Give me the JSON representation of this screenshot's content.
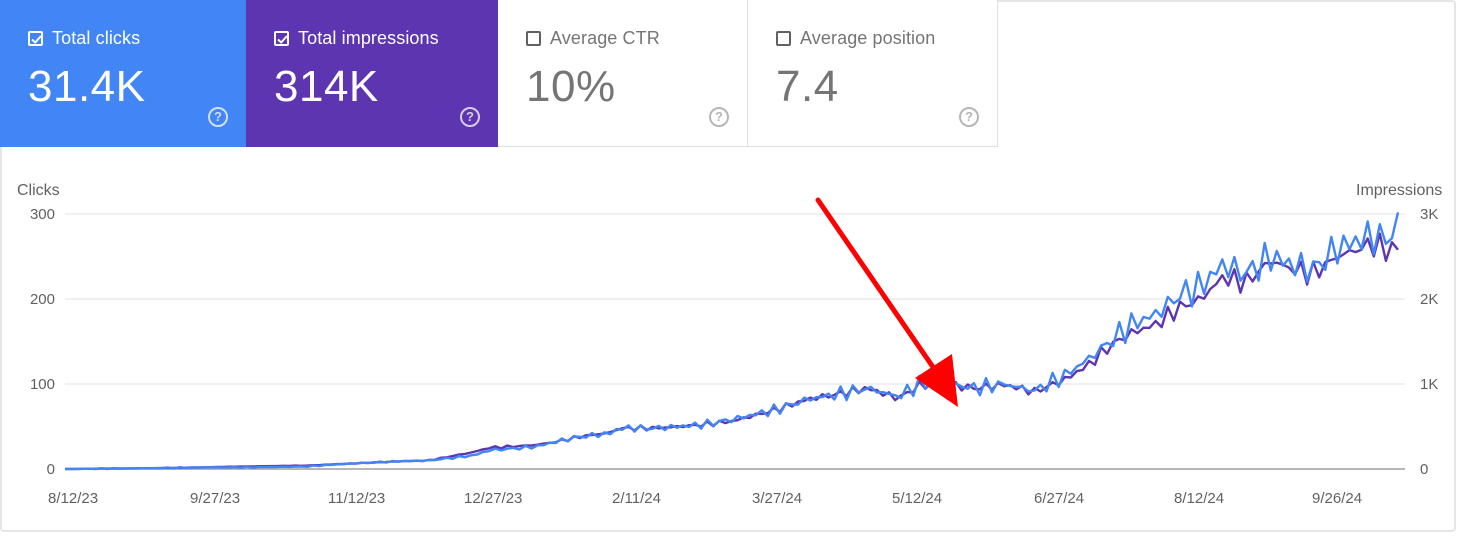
{
  "metric_cards": [
    {
      "key": "clicks",
      "label": "Total clicks",
      "value": "31.4K",
      "checked": true,
      "color": "#4285f4"
    },
    {
      "key": "impressions",
      "label": "Total impressions",
      "value": "314K",
      "checked": true,
      "color": "#5e35b1"
    },
    {
      "key": "ctr",
      "label": "Average CTR",
      "value": "10%",
      "checked": false
    },
    {
      "key": "position",
      "label": "Average position",
      "value": "7.4",
      "checked": false
    }
  ],
  "help_glyph": "?",
  "chart_data": {
    "type": "line",
    "left_axis": {
      "title": "Clicks",
      "ticks": [
        "300",
        "200",
        "100",
        "0"
      ],
      "range": [
        0,
        300
      ]
    },
    "right_axis": {
      "title": "Impressions",
      "ticks": [
        "3K",
        "2K",
        "1K",
        "0"
      ],
      "range": [
        0,
        3000
      ]
    },
    "x_ticks": [
      "8/12/23",
      "9/27/23",
      "11/12/23",
      "12/27/23",
      "2/11/24",
      "3/27/24",
      "5/12/24",
      "6/27/24",
      "8/12/24",
      "9/26/24"
    ],
    "series": [
      {
        "name": "Clicks",
        "axis": "left",
        "color": "#4285f4",
        "points": [
          [
            0,
            0
          ],
          [
            30,
            1
          ],
          [
            46,
            2
          ],
          [
            60,
            2
          ],
          [
            80,
            3
          ],
          [
            92,
            6
          ],
          [
            110,
            9
          ],
          [
            120,
            10
          ],
          [
            135,
            16
          ],
          [
            140,
            22
          ],
          [
            155,
            26
          ],
          [
            162,
            32
          ],
          [
            170,
            38
          ],
          [
            180,
            42
          ],
          [
            183,
            48
          ],
          [
            195,
            48
          ],
          [
            210,
            52
          ],
          [
            220,
            58
          ],
          [
            235,
            70
          ],
          [
            245,
            82
          ],
          [
            255,
            88
          ],
          [
            265,
            95
          ],
          [
            275,
            85
          ],
          [
            282,
            100
          ],
          [
            290,
            102
          ],
          [
            300,
            95
          ],
          [
            310,
            100
          ],
          [
            320,
            92
          ],
          [
            330,
            110
          ],
          [
            338,
            130
          ],
          [
            345,
            150
          ],
          [
            352,
            170
          ],
          [
            360,
            182
          ],
          [
            368,
            205
          ],
          [
            375,
            215
          ],
          [
            382,
            240
          ],
          [
            390,
            230
          ],
          [
            398,
            250
          ],
          [
            405,
            240
          ],
          [
            412,
            235
          ],
          [
            420,
            260
          ],
          [
            428,
            270
          ],
          [
            432,
            275
          ],
          [
            435,
            268
          ],
          [
            440,
            285
          ]
        ]
      },
      {
        "name": "Impressions",
        "axis": "right",
        "color": "#5e35b1",
        "points": [
          [
            0,
            0
          ],
          [
            30,
            10
          ],
          [
            46,
            20
          ],
          [
            60,
            30
          ],
          [
            80,
            40
          ],
          [
            92,
            60
          ],
          [
            110,
            90
          ],
          [
            120,
            100
          ],
          [
            135,
            200
          ],
          [
            140,
            250
          ],
          [
            155,
            280
          ],
          [
            162,
            320
          ],
          [
            170,
            380
          ],
          [
            180,
            430
          ],
          [
            183,
            480
          ],
          [
            195,
            480
          ],
          [
            210,
            520
          ],
          [
            220,
            560
          ],
          [
            235,
            700
          ],
          [
            245,
            820
          ],
          [
            255,
            880
          ],
          [
            265,
            950
          ],
          [
            275,
            830
          ],
          [
            282,
            980
          ],
          [
            290,
            1000
          ],
          [
            300,
            950
          ],
          [
            310,
            990
          ],
          [
            320,
            910
          ],
          [
            330,
            1050
          ],
          [
            338,
            1230
          ],
          [
            345,
            1450
          ],
          [
            352,
            1600
          ],
          [
            360,
            1700
          ],
          [
            368,
            1900
          ],
          [
            375,
            2000
          ],
          [
            382,
            2250
          ],
          [
            390,
            2200
          ],
          [
            398,
            2450
          ],
          [
            405,
            2350
          ],
          [
            412,
            2300
          ],
          [
            420,
            2500
          ],
          [
            428,
            2600
          ],
          [
            432,
            2650
          ],
          [
            435,
            2580
          ],
          [
            440,
            2600
          ]
        ]
      }
    ],
    "annotation": {
      "type": "arrow",
      "color": "#ff0000",
      "points_to": "5/12/24"
    }
  }
}
